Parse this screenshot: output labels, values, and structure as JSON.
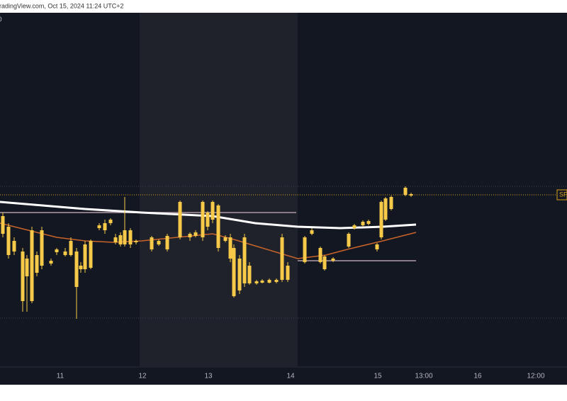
{
  "chart_data": {
    "type": "candlestick",
    "title": "radingView.com, Oct 15, 2024 11:24 UTC+2",
    "legend_fragment": "0",
    "xlim": [
      0,
      160
    ],
    "ylim": [
      0,
      500
    ],
    "xticks": [
      {
        "value": 17,
        "label": "11"
      },
      {
        "value": 40.2,
        "label": "12"
      },
      {
        "value": 58.8,
        "label": "13"
      },
      {
        "value": 82,
        "label": "14"
      },
      {
        "value": 106.6,
        "label": "15"
      },
      {
        "value": 119.6,
        "label": "13:00"
      },
      {
        "value": 134.8,
        "label": "16"
      },
      {
        "value": 151.2,
        "label": "12:00"
      }
    ],
    "color": "#f7c948",
    "session_highlight": {
      "from": 39.4,
      "to": 84,
      "color": "#1f222b"
    },
    "x": [
      0.8,
      2.4,
      4,
      6.4,
      7.6,
      9,
      10.4,
      11.8,
      14.4,
      16,
      18.4,
      20,
      21.6,
      22.8,
      24,
      25.6,
      28,
      29.6,
      31.2,
      32.6,
      34,
      35.2,
      36.8,
      38.4,
      42.8,
      44.8,
      47.2,
      50.8,
      53.6,
      55.2,
      57.2,
      58.6,
      60,
      61.6,
      63.6,
      65,
      66,
      67.6,
      69,
      70.4,
      72.4,
      74,
      76,
      78,
      79.6,
      81.2,
      86,
      88,
      90.4,
      91.6,
      94,
      98.4,
      100,
      102.4,
      104,
      106.4,
      107.6,
      108.8,
      110.4,
      114.4,
      116
    ],
    "open": [
      188,
      158,
      163,
      93,
      128,
      93,
      133,
      143,
      146,
      162,
      158,
      158,
      113,
      138,
      138,
      140,
      196,
      193,
      203,
      176,
      173,
      173,
      173,
      176,
      166,
      173,
      166,
      183,
      183,
      185,
      183,
      198,
      208,
      168,
      178,
      153,
      100,
      108,
      118,
      118,
      118,
      119,
      119,
      120,
      123,
      123,
      148,
      188,
      148,
      138,
      150,
      170,
      196,
      200,
      202,
      166,
      183,
      208,
      223,
      243,
      242
    ],
    "high": [
      218,
      203,
      183,
      168,
      158,
      198,
      163,
      198,
      153,
      168,
      168,
      183,
      168,
      148,
      178,
      180,
      203,
      208,
      210,
      188,
      190,
      240,
      196,
      180,
      185,
      180,
      188,
      235,
      190,
      193,
      235,
      220,
      235,
      230,
      186,
      188,
      173,
      158,
      188,
      148,
      123,
      124,
      125,
      125,
      188,
      148,
      185,
      196,
      170,
      158,
      155,
      190,
      202,
      207,
      208,
      175,
      235,
      240,
      242,
      255,
      246
    ],
    "low": [
      183,
      153,
      158,
      78,
      78,
      90,
      128,
      138,
      143,
      158,
      156,
      156,
      68,
      133,
      133,
      138,
      193,
      188,
      200,
      173,
      170,
      170,
      168,
      173,
      163,
      171,
      163,
      180,
      178,
      183,
      178,
      193,
      203,
      163,
      176,
      148,
      98,
      103,
      113,
      116,
      116,
      118,
      118,
      118,
      120,
      120,
      146,
      186,
      146,
      136,
      148,
      168,
      194,
      198,
      200,
      163,
      180,
      206,
      221,
      241,
      240
    ],
    "close": [
      213,
      198,
      178,
      163,
      153,
      193,
      158,
      193,
      150,
      166,
      163,
      178,
      163,
      143,
      173,
      178,
      200,
      203,
      208,
      183,
      186,
      193,
      193,
      178,
      183,
      178,
      185,
      233,
      188,
      190,
      233,
      218,
      233,
      228,
      183,
      183,
      168,
      153,
      183,
      143,
      121,
      122,
      123,
      123,
      183,
      143,
      183,
      193,
      168,
      156,
      153,
      188,
      200,
      205,
      206,
      173,
      233,
      238,
      240,
      253,
      244
    ],
    "ma": [
      {
        "color": "#ffffff",
        "width": 3,
        "x": [
          0,
          24,
          40,
          60,
          72,
          84,
          96,
          108,
          117.4
        ],
        "values": [
          233,
          223,
          218,
          213,
          203,
          198,
          196,
          198,
          201
        ]
      },
      {
        "color": "#c8642a",
        "width": 1.5,
        "x": [
          0,
          8,
          16,
          24,
          32,
          40,
          50,
          60,
          66,
          74,
          84,
          92,
          98,
          108,
          117.4
        ],
        "values": [
          203,
          193,
          183,
          178,
          176,
          178,
          183,
          188,
          180,
          168,
          153,
          158,
          166,
          178,
          190
        ]
      }
    ],
    "levels": [
      {
        "value": 255,
        "from": 0,
        "to": 160,
        "color": "#3a3e4a",
        "style": "dotted"
      },
      {
        "value": 69,
        "from": 0,
        "to": 160,
        "color": "#3a3e4a",
        "style": "dotted"
      },
      {
        "value": 218,
        "from": 0,
        "to": 83.6,
        "color": "#8a7a86",
        "style": "solid"
      },
      {
        "value": 150,
        "from": 84,
        "to": 117.4,
        "color": "#8a7a86",
        "style": "solid"
      },
      {
        "value": 243,
        "from": 0,
        "to": 160,
        "color": "#d9a21b",
        "style": "dotted",
        "label": "SF"
      }
    ]
  }
}
